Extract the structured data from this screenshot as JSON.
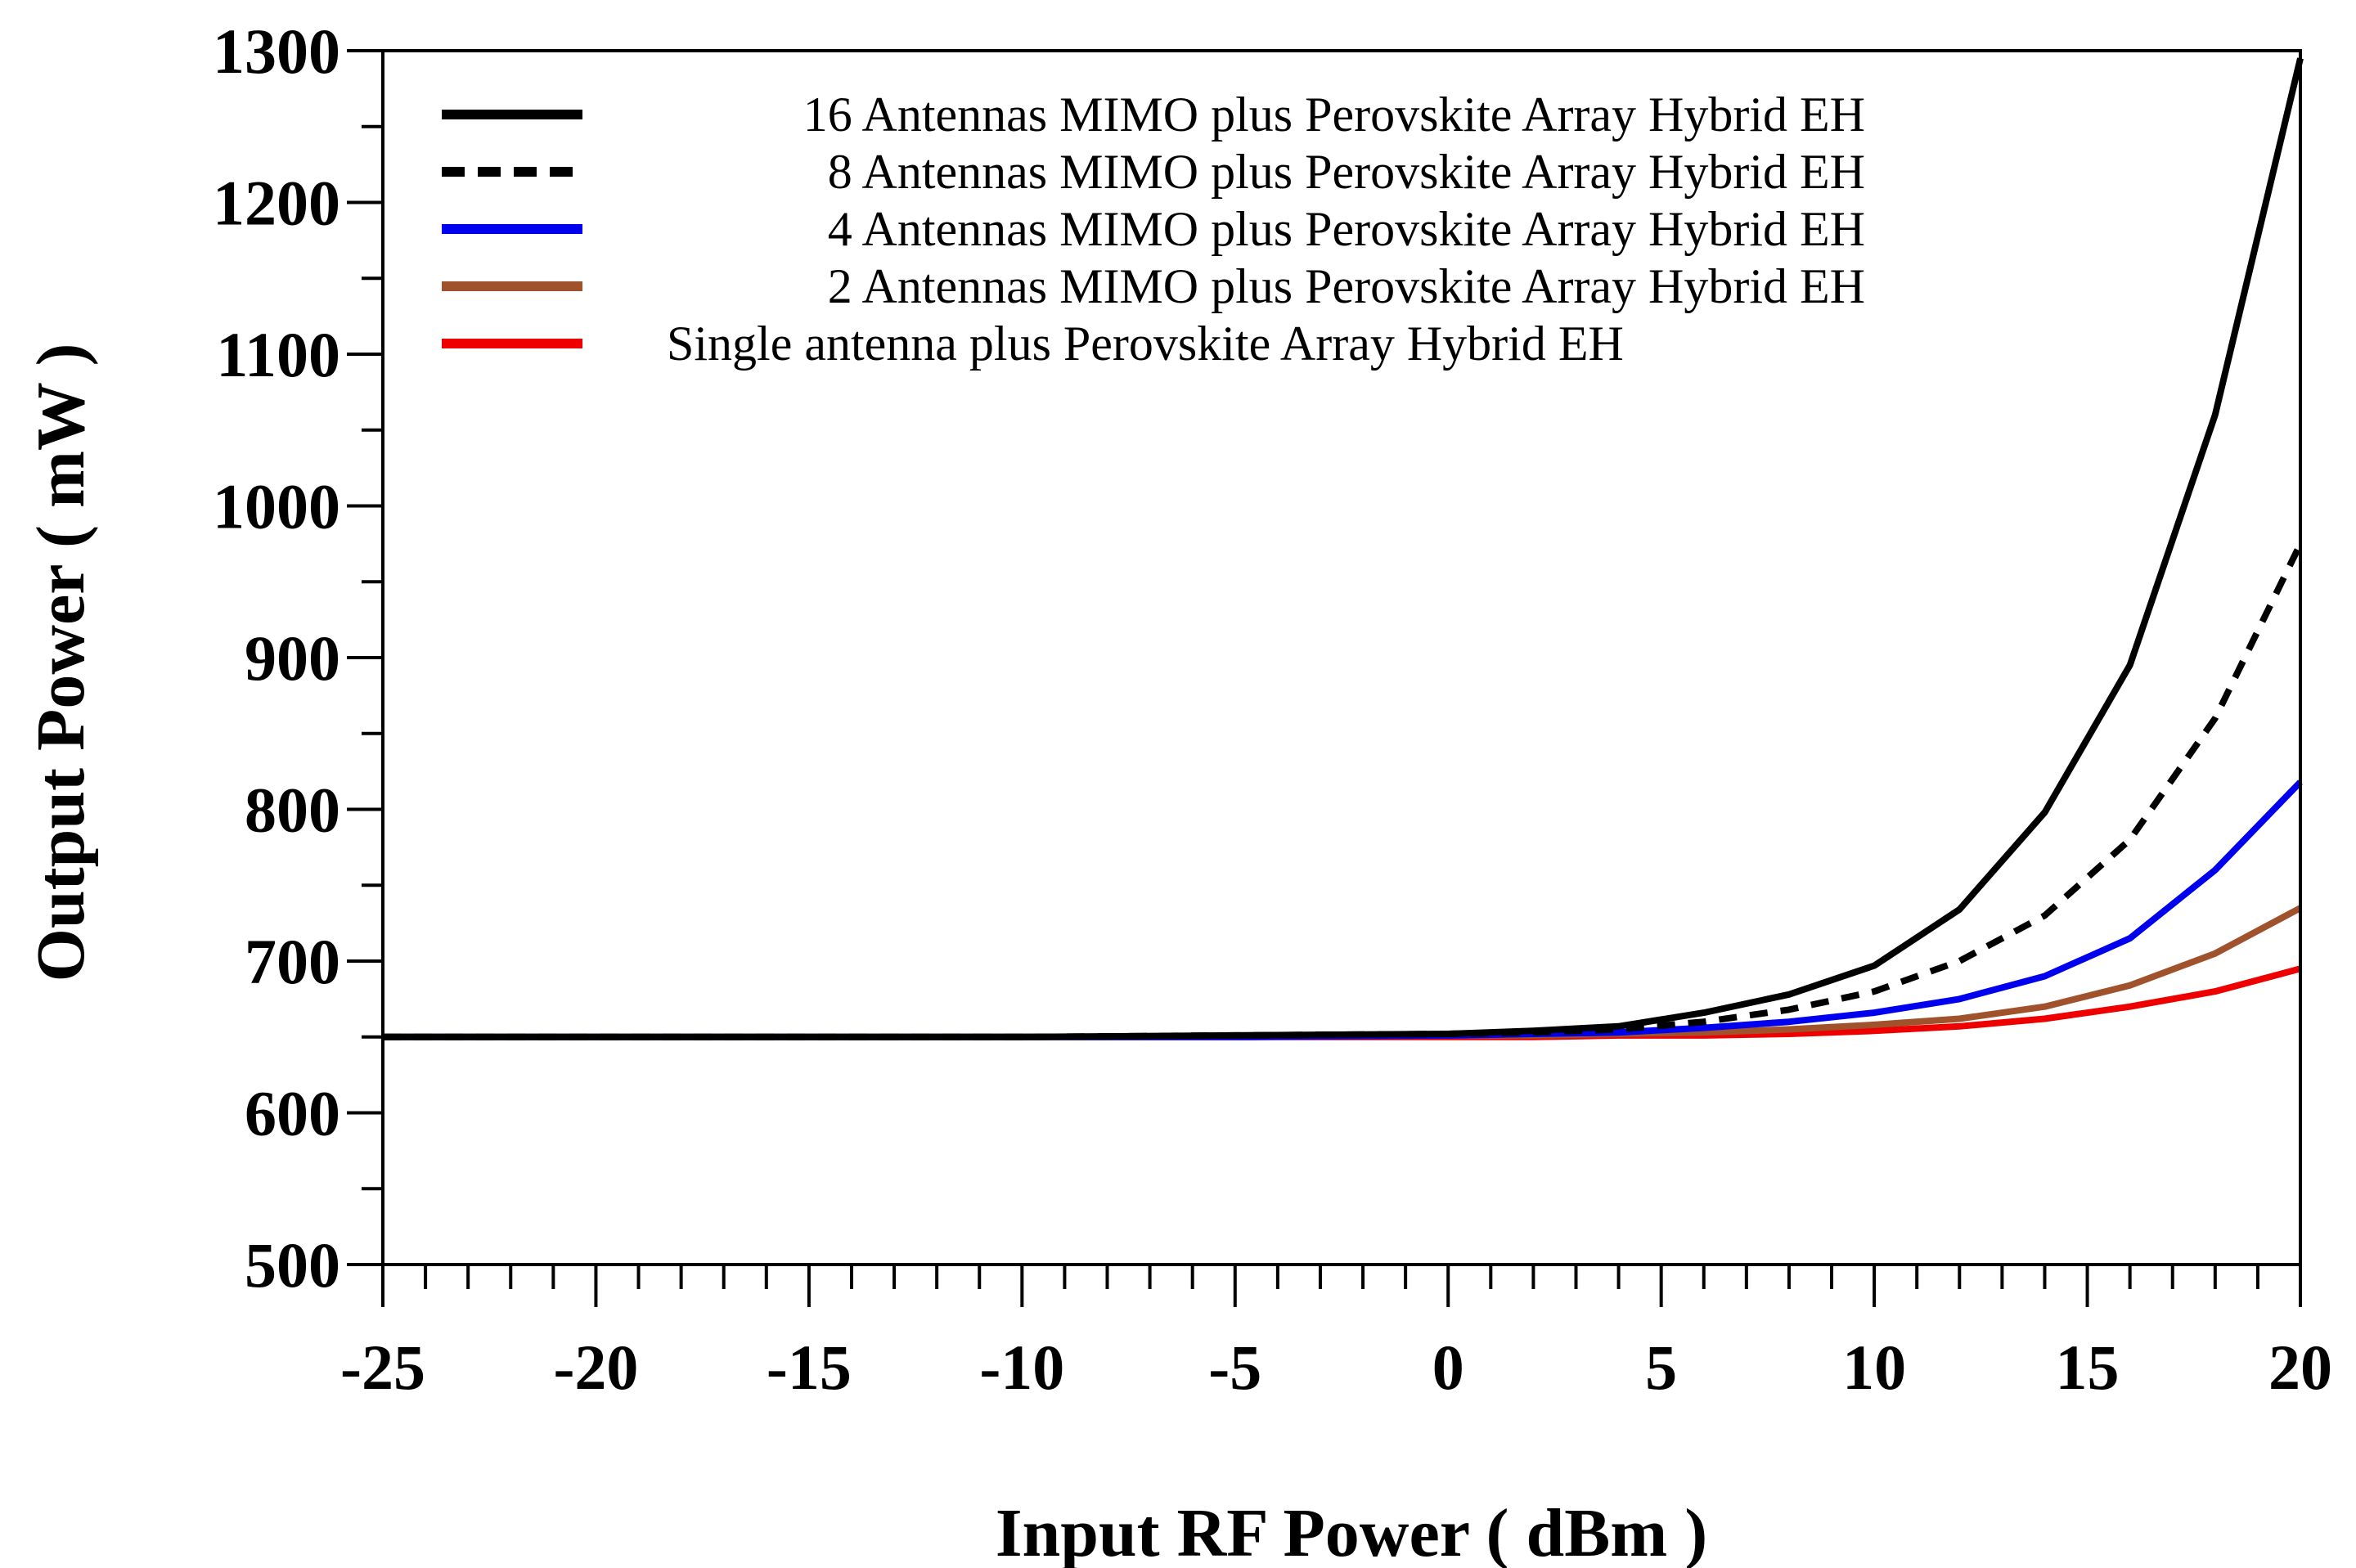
{
  "chart_data": {
    "type": "line",
    "title": "",
    "xlabel": "Input RF Power ( dBm )",
    "ylabel": "Output Power ( mW )",
    "xlim": [
      -25,
      20
    ],
    "ylim": [
      500,
      1300
    ],
    "xticks": [
      -25,
      -20,
      -15,
      -10,
      -5,
      0,
      5,
      10,
      15,
      20
    ],
    "yticks": [
      500,
      600,
      700,
      800,
      900,
      1000,
      1100,
      1200,
      1300
    ],
    "x_minor_step": 1,
    "y_minor_step": 50,
    "grid": false,
    "legend_position": "top-left",
    "x": [
      -25,
      -20,
      -15,
      -10,
      -5,
      0,
      2,
      4,
      6,
      8,
      10,
      12,
      14,
      16,
      18,
      20
    ],
    "series": [
      {
        "name": "16 Antennas MIMO plus Perovskite Array Hybrid EH",
        "color": "#000000",
        "style": "solid",
        "values": [
          650,
          650,
          650,
          650,
          651,
          652,
          654,
          657,
          666,
          678,
          697,
          734,
          798,
          895,
          1060,
          1295
        ]
      },
      {
        "name": "8 Antennas MIMO plus Perovskite Array Hybrid EH",
        "color": "#000000",
        "style": "dashed",
        "values": [
          650,
          650,
          650,
          650,
          651,
          652,
          653,
          655,
          660,
          668,
          680,
          700,
          730,
          780,
          860,
          975
        ]
      },
      {
        "name": "4 Antennas MIMO plus Perovskite Array Hybrid EH",
        "color": "#0000ee",
        "style": "solid",
        "values": [
          650,
          650,
          650,
          650,
          650,
          651,
          652,
          653,
          656,
          660,
          666,
          675,
          690,
          715,
          760,
          818
        ]
      },
      {
        "name": "2 Antennas MIMO plus Perovskite Array Hybrid EH",
        "color": "#a0522d",
        "style": "solid",
        "values": [
          650,
          650,
          650,
          650,
          650,
          651,
          651,
          652,
          653,
          655,
          658,
          662,
          670,
          684,
          705,
          735
        ]
      },
      {
        "name": "Single antenna plus Perovskite Array Hybrid EH",
        "color": "#ee0000",
        "style": "solid",
        "values": [
          650,
          650,
          650,
          650,
          650,
          650,
          650,
          651,
          651,
          652,
          654,
          657,
          662,
          670,
          680,
          695
        ]
      }
    ]
  }
}
